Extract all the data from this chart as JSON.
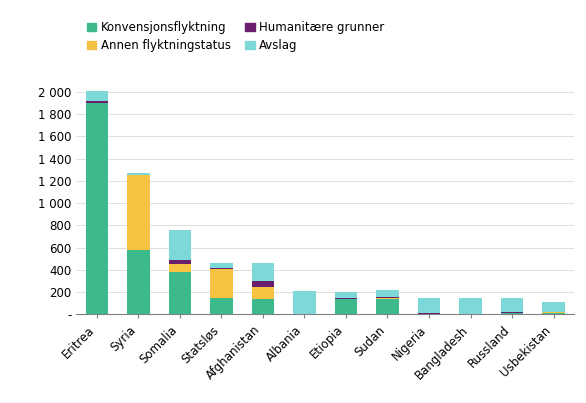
{
  "countries": [
    "Eritrea",
    "Syria",
    "Somalia",
    "Statsløs",
    "Afghanistan",
    "Albania",
    "Etiopia",
    "Sudan",
    "Nigeria",
    "Bangladesh",
    "Russland",
    "Usbekistan"
  ],
  "konvensjon": [
    1900,
    580,
    380,
    150,
    140,
    0,
    140,
    140,
    5,
    5,
    10,
    10
  ],
  "annen": [
    0,
    670,
    75,
    260,
    110,
    0,
    0,
    5,
    0,
    0,
    0,
    10
  ],
  "humanitaer": [
    15,
    5,
    35,
    5,
    50,
    0,
    10,
    10,
    5,
    0,
    10,
    5
  ],
  "avslag": [
    90,
    15,
    270,
    50,
    160,
    210,
    50,
    60,
    140,
    140,
    130,
    90
  ],
  "color_konvensjon": "#3dba8c",
  "color_annen": "#f5c242",
  "color_humanitaer": "#6a1e6e",
  "color_avslag": "#7dd8d8",
  "yticks": [
    0,
    200,
    400,
    600,
    800,
    1000,
    1200,
    1400,
    1600,
    1800,
    2000
  ],
  "ytick_labels": [
    "-",
    "200",
    "400",
    "600",
    "800",
    "1 000",
    "1 200",
    "1 400",
    "1 600",
    "1 800",
    "2 000"
  ],
  "legend_labels": [
    "Konvensjonsflyktning",
    "Annen flyktningstatus",
    "Humanitære grunner",
    "Avslag"
  ],
  "bar_width": 0.55
}
